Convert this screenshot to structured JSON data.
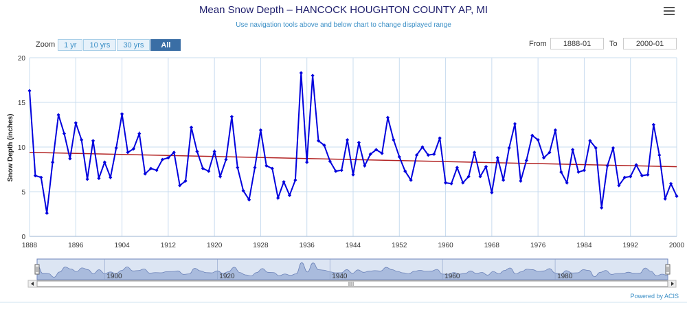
{
  "title": "Mean Snow Depth – HANCOCK HOUGHTON COUNTY AP, MI",
  "subtitle": "Use navigation tools above and below chart to change displayed range",
  "menu_icon": "hamburger-menu-icon",
  "zoom": {
    "label": "Zoom",
    "buttons": [
      "1 yr",
      "10 yrs",
      "30 yrs",
      "All"
    ],
    "selected": "All"
  },
  "range": {
    "from_label": "From",
    "from_value": "1888-01",
    "to_label": "To",
    "to_value": "2000-01"
  },
  "powered_by": "Powered by ACIS",
  "navigator_scroll_icon": "scrollbar-grip-icon",
  "chart_data": {
    "type": "line",
    "ylabel": "Snow Depth (inches)",
    "xlabel": "",
    "ylim": [
      0,
      20
    ],
    "yticks": [
      0,
      5,
      10,
      15,
      20
    ],
    "xlim": [
      1888,
      2000
    ],
    "xticks": [
      1888,
      1896,
      1904,
      1912,
      1920,
      1928,
      1936,
      1944,
      1952,
      1960,
      1968,
      1976,
      1984,
      1992,
      2000
    ],
    "navigator_ticks": [
      1900,
      1920,
      1940,
      1960,
      1980
    ],
    "grid": true,
    "colors": {
      "series": "#0000dd",
      "trend": "#b22222",
      "navigator_fill": "#a9bbdd",
      "navigator_line": "#6b82b8"
    },
    "series": [
      {
        "x": [
          1888,
          1889,
          1890,
          1891,
          1892,
          1893,
          1894,
          1895,
          1896,
          1897,
          1898,
          1899,
          1900,
          1901,
          1902,
          1903,
          1904,
          1905,
          1906,
          1907,
          1908,
          1909,
          1910,
          1911,
          1912,
          1913,
          1914,
          1915,
          1916,
          1917,
          1918,
          1919,
          1920,
          1921,
          1922,
          1923,
          1924,
          1925,
          1926,
          1927,
          1928,
          1929,
          1930,
          1931,
          1932,
          1933,
          1934,
          1935,
          1936,
          1937,
          1938,
          1939,
          1940,
          1941,
          1942,
          1943,
          1944,
          1945,
          1946,
          1947,
          1948,
          1949,
          1950,
          1951,
          1952,
          1953,
          1954,
          1955,
          1956,
          1957,
          1958,
          1959,
          1960,
          1961,
          1962,
          1963,
          1964,
          1965,
          1966,
          1967,
          1968,
          1969,
          1970,
          1971,
          1972,
          1973,
          1974,
          1975,
          1976,
          1977,
          1978,
          1979,
          1980,
          1981,
          1982,
          1983,
          1984,
          1985,
          1986,
          1987,
          1988,
          1989,
          1990,
          1991,
          1992,
          1993,
          1994,
          1995,
          1996,
          1997,
          1998,
          1999,
          2000
        ],
        "y": [
          16.3,
          6.8,
          6.6,
          2.6,
          8.3,
          13.6,
          11.5,
          8.7,
          12.7,
          10.8,
          6.4,
          10.7,
          6.5,
          8.3,
          6.6,
          9.9,
          13.7,
          9.4,
          9.8,
          11.5,
          7.0,
          7.6,
          7.4,
          8.6,
          8.8,
          9.4,
          5.7,
          6.2,
          12.2,
          9.5,
          7.6,
          7.3,
          9.5,
          6.7,
          8.6,
          13.4,
          7.7,
          5.1,
          4.1,
          7.7,
          11.9,
          7.9,
          7.6,
          4.3,
          6.1,
          4.6,
          6.3,
          18.3,
          8.3,
          18.0,
          10.7,
          10.2,
          8.4,
          7.3,
          7.4,
          10.8,
          6.9,
          10.5,
          7.9,
          9.2,
          9.7,
          9.3,
          13.3,
          10.8,
          8.9,
          7.3,
          6.3,
          9.1,
          10.0,
          9.1,
          9.2,
          11.0,
          6.0,
          5.9,
          7.7,
          6.0,
          6.7,
          9.4,
          6.7,
          7.8,
          4.9,
          8.8,
          6.3,
          9.9,
          12.6,
          6.2,
          8.5,
          11.3,
          10.8,
          8.8,
          9.4,
          11.9,
          7.2,
          6.0,
          9.7,
          7.2,
          7.4,
          10.7,
          9.9,
          3.2,
          7.9,
          9.9,
          5.7,
          6.6,
          6.7,
          8.0,
          6.8,
          6.9,
          12.5,
          9.1,
          4.2,
          5.9,
          4.5
        ]
      }
    ],
    "trend": {
      "x": [
        1888,
        2000
      ],
      "y": [
        9.4,
        7.8
      ]
    }
  }
}
